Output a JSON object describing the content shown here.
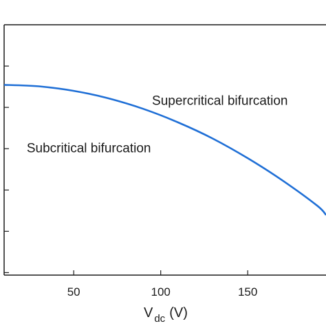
{
  "chart_data": {
    "type": "line",
    "title": "",
    "xlabel": {
      "main": "V",
      "subscript": "dc",
      "unit": "(V)"
    },
    "ylabel": "",
    "xlim": [
      10,
      195
    ],
    "ylim": [
      0,
      1
    ],
    "x_ticks": [
      50,
      100,
      150
    ],
    "y_tick_count": 6,
    "grid": false,
    "legend": "none",
    "series": [
      {
        "color": "#1f6fd6",
        "x": [
          10,
          30,
          50,
          70,
          90,
          110,
          130,
          150,
          170,
          190,
          195
        ],
        "y": [
          0.76,
          0.754,
          0.736,
          0.706,
          0.664,
          0.61,
          0.545,
          0.467,
          0.378,
          0.277,
          0.24
        ]
      }
    ],
    "annotations": [
      {
        "text": "Supercritical bifurcation",
        "x": 95,
        "y": 0.68
      },
      {
        "text": "Subcritical bifurcation",
        "x": 23,
        "y": 0.49
      }
    ]
  }
}
